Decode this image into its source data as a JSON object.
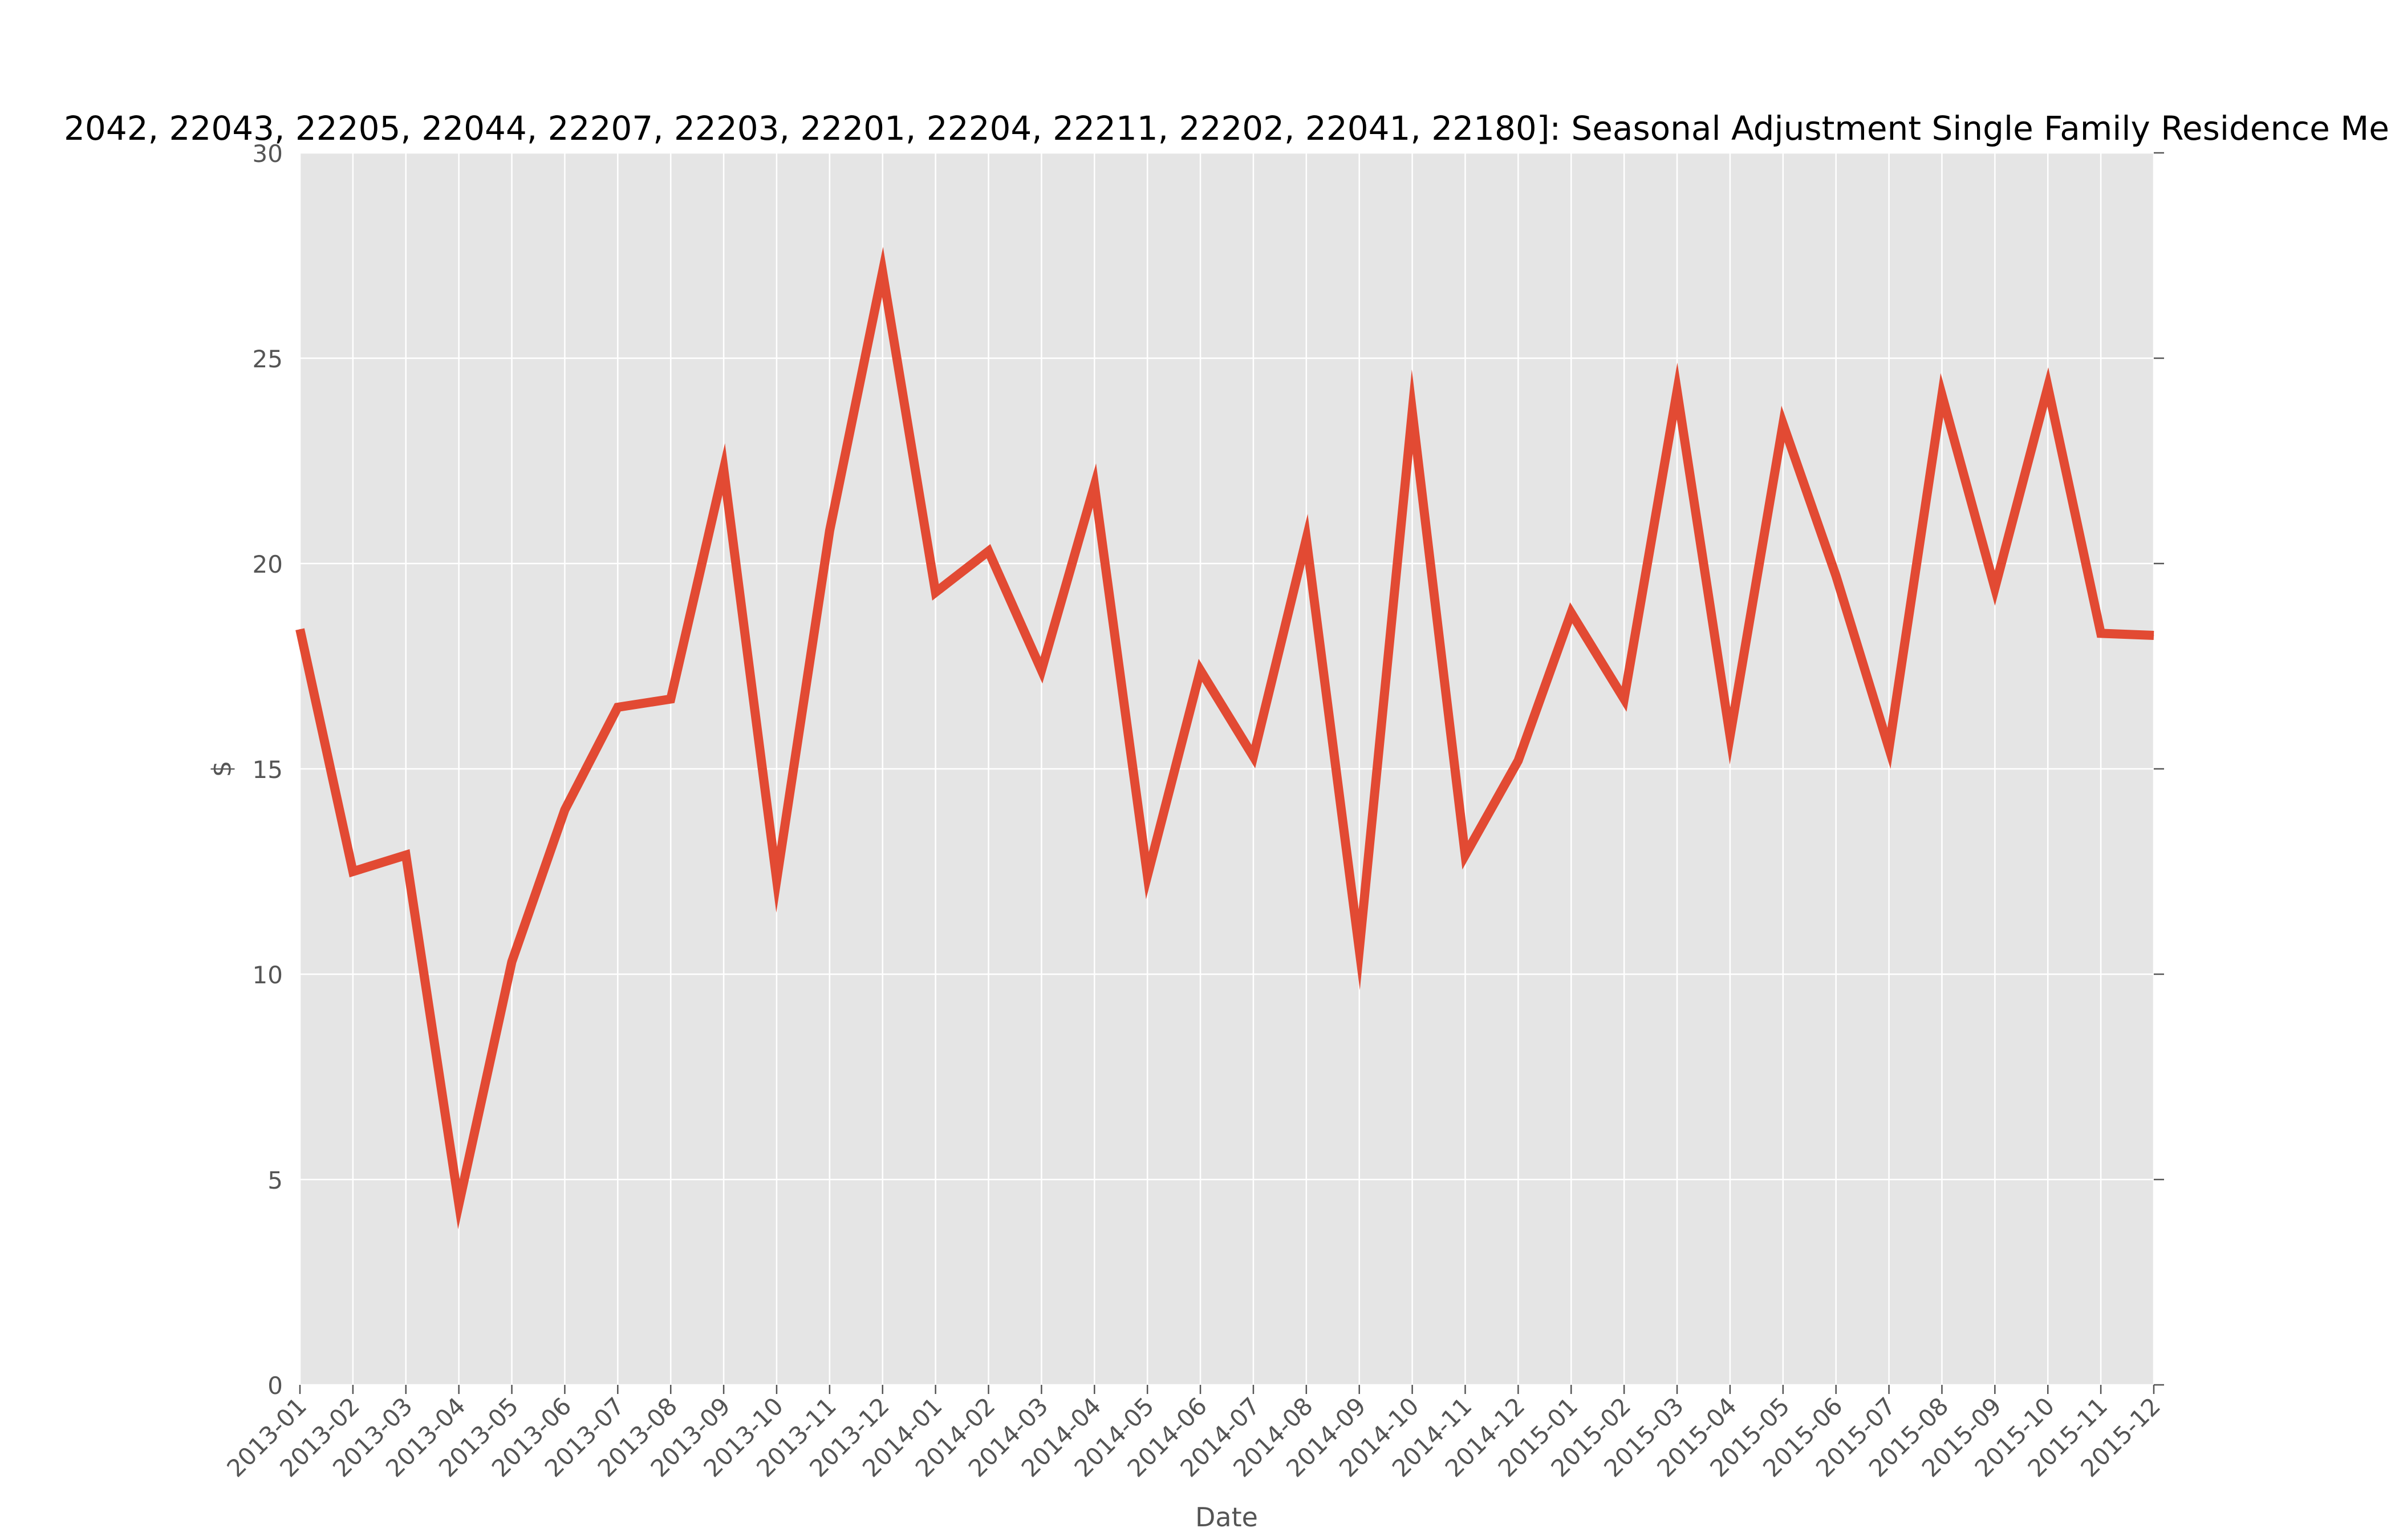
{
  "chart_data": {
    "type": "line",
    "title": "2042, 22043, 22205, 22044, 22207, 22203, 22201, 22204, 22211, 22202, 22041, 22180]: Seasonal Adjustment Single Family Residence Me",
    "xlabel": "Date",
    "ylabel": "$",
    "ylim": [
      0,
      30
    ],
    "yticks": [
      0,
      5,
      10,
      15,
      20,
      25,
      30
    ],
    "grid": true,
    "legend": "none",
    "categories": [
      "2013-01",
      "2013-02",
      "2013-03",
      "2013-04",
      "2013-05",
      "2013-06",
      "2013-07",
      "2013-08",
      "2013-09",
      "2013-10",
      "2013-11",
      "2013-12",
      "2014-01",
      "2014-02",
      "2014-03",
      "2014-04",
      "2014-05",
      "2014-06",
      "2014-07",
      "2014-08",
      "2014-09",
      "2014-10",
      "2014-11",
      "2014-12",
      "2015-01",
      "2015-02",
      "2015-03",
      "2015-04",
      "2015-05",
      "2015-06",
      "2015-07",
      "2015-08",
      "2015-09",
      "2015-10",
      "2015-11",
      "2015-12"
    ],
    "series": [
      {
        "values": [
          18.4,
          12.5,
          12.9,
          4.4,
          10.3,
          14.0,
          16.5,
          16.7,
          22.3,
          12.3,
          20.8,
          27.1,
          19.3,
          20.3,
          17.4,
          21.9,
          12.4,
          17.4,
          15.3,
          20.6,
          10.6,
          23.7,
          12.9,
          15.2,
          18.8,
          16.7,
          24.2,
          15.8,
          23.4,
          19.7,
          15.5,
          24.1,
          19.4,
          24.3,
          18.3,
          18.25
        ]
      }
    ],
    "colors": {
      "line": "#e24a33",
      "plot_background": "#e5e5e5",
      "grid": "#ffffff",
      "tick_label": "#555555",
      "title": "#000000"
    }
  }
}
